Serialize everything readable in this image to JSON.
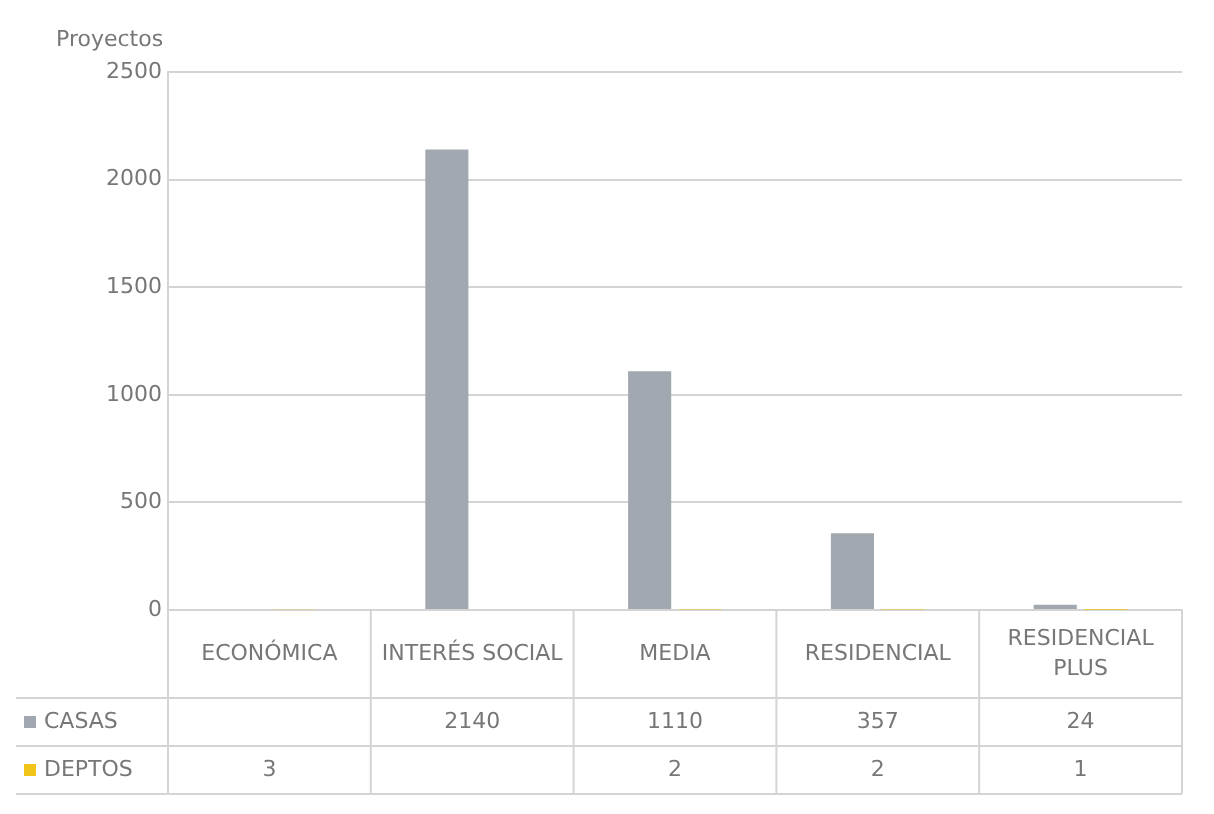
{
  "chart_data": {
    "type": "bar",
    "ylabel": "Proyectos",
    "categories": [
      "ECONÓMICA",
      "INTERÉS SOCIAL",
      "MEDIA",
      "RESIDENCIAL",
      "RESIDENCIAL PLUS"
    ],
    "series": [
      {
        "name": "CASAS",
        "color": "#a2a8b0",
        "values": [
          null,
          2140,
          1110,
          357,
          24
        ]
      },
      {
        "name": "DEPTOS",
        "color": "#f0c419",
        "values": [
          3,
          null,
          2,
          2,
          1
        ]
      }
    ],
    "ylim": [
      0,
      2500
    ],
    "yticks": [
      0,
      500,
      1000,
      1500,
      2000,
      2500
    ],
    "grid": "y",
    "legend": "bottom left",
    "data_labels": true
  }
}
